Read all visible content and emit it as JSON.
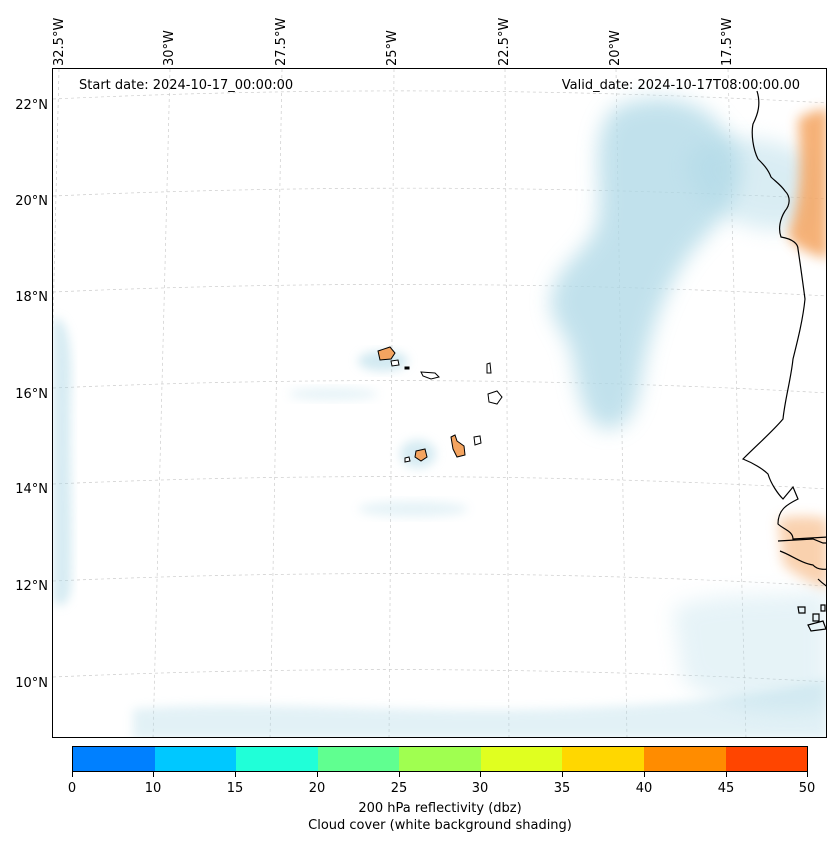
{
  "map": {
    "start_date": "Start date: 2024-10-17_00:00:00",
    "valid_date": "Valid_date: 2024-10-17T08:00:00.00",
    "longitude_labels": [
      "32.5°W",
      "30°W",
      "27.5°W",
      "25°W",
      "22.5°W",
      "20°W",
      "17.5°W"
    ],
    "latitude_labels": [
      "22°N",
      "20°N",
      "18°N",
      "16°N",
      "14°N",
      "12°N",
      "10°N"
    ],
    "features": [
      "Cape Verde islands",
      "West African coastline",
      "cloud bands"
    ],
    "colors": {
      "cloud": "#add8e6",
      "land_reflectivity": "#f4a460",
      "coastline": "#000000",
      "gridline": "#cccccc"
    }
  },
  "colorbar": {
    "ticks": [
      "0",
      "10",
      "15",
      "20",
      "25",
      "30",
      "35",
      "40",
      "45",
      "50"
    ],
    "colors": [
      "#0080ff",
      "#00c8ff",
      "#20ffd8",
      "#60ff90",
      "#a0ff50",
      "#e0ff20",
      "#ffd700",
      "#ff8c00",
      "#ff4500"
    ],
    "title_line1": "200 hPa reflectivity (dbz)",
    "title_line2": "Cloud cover (white background shading)"
  }
}
